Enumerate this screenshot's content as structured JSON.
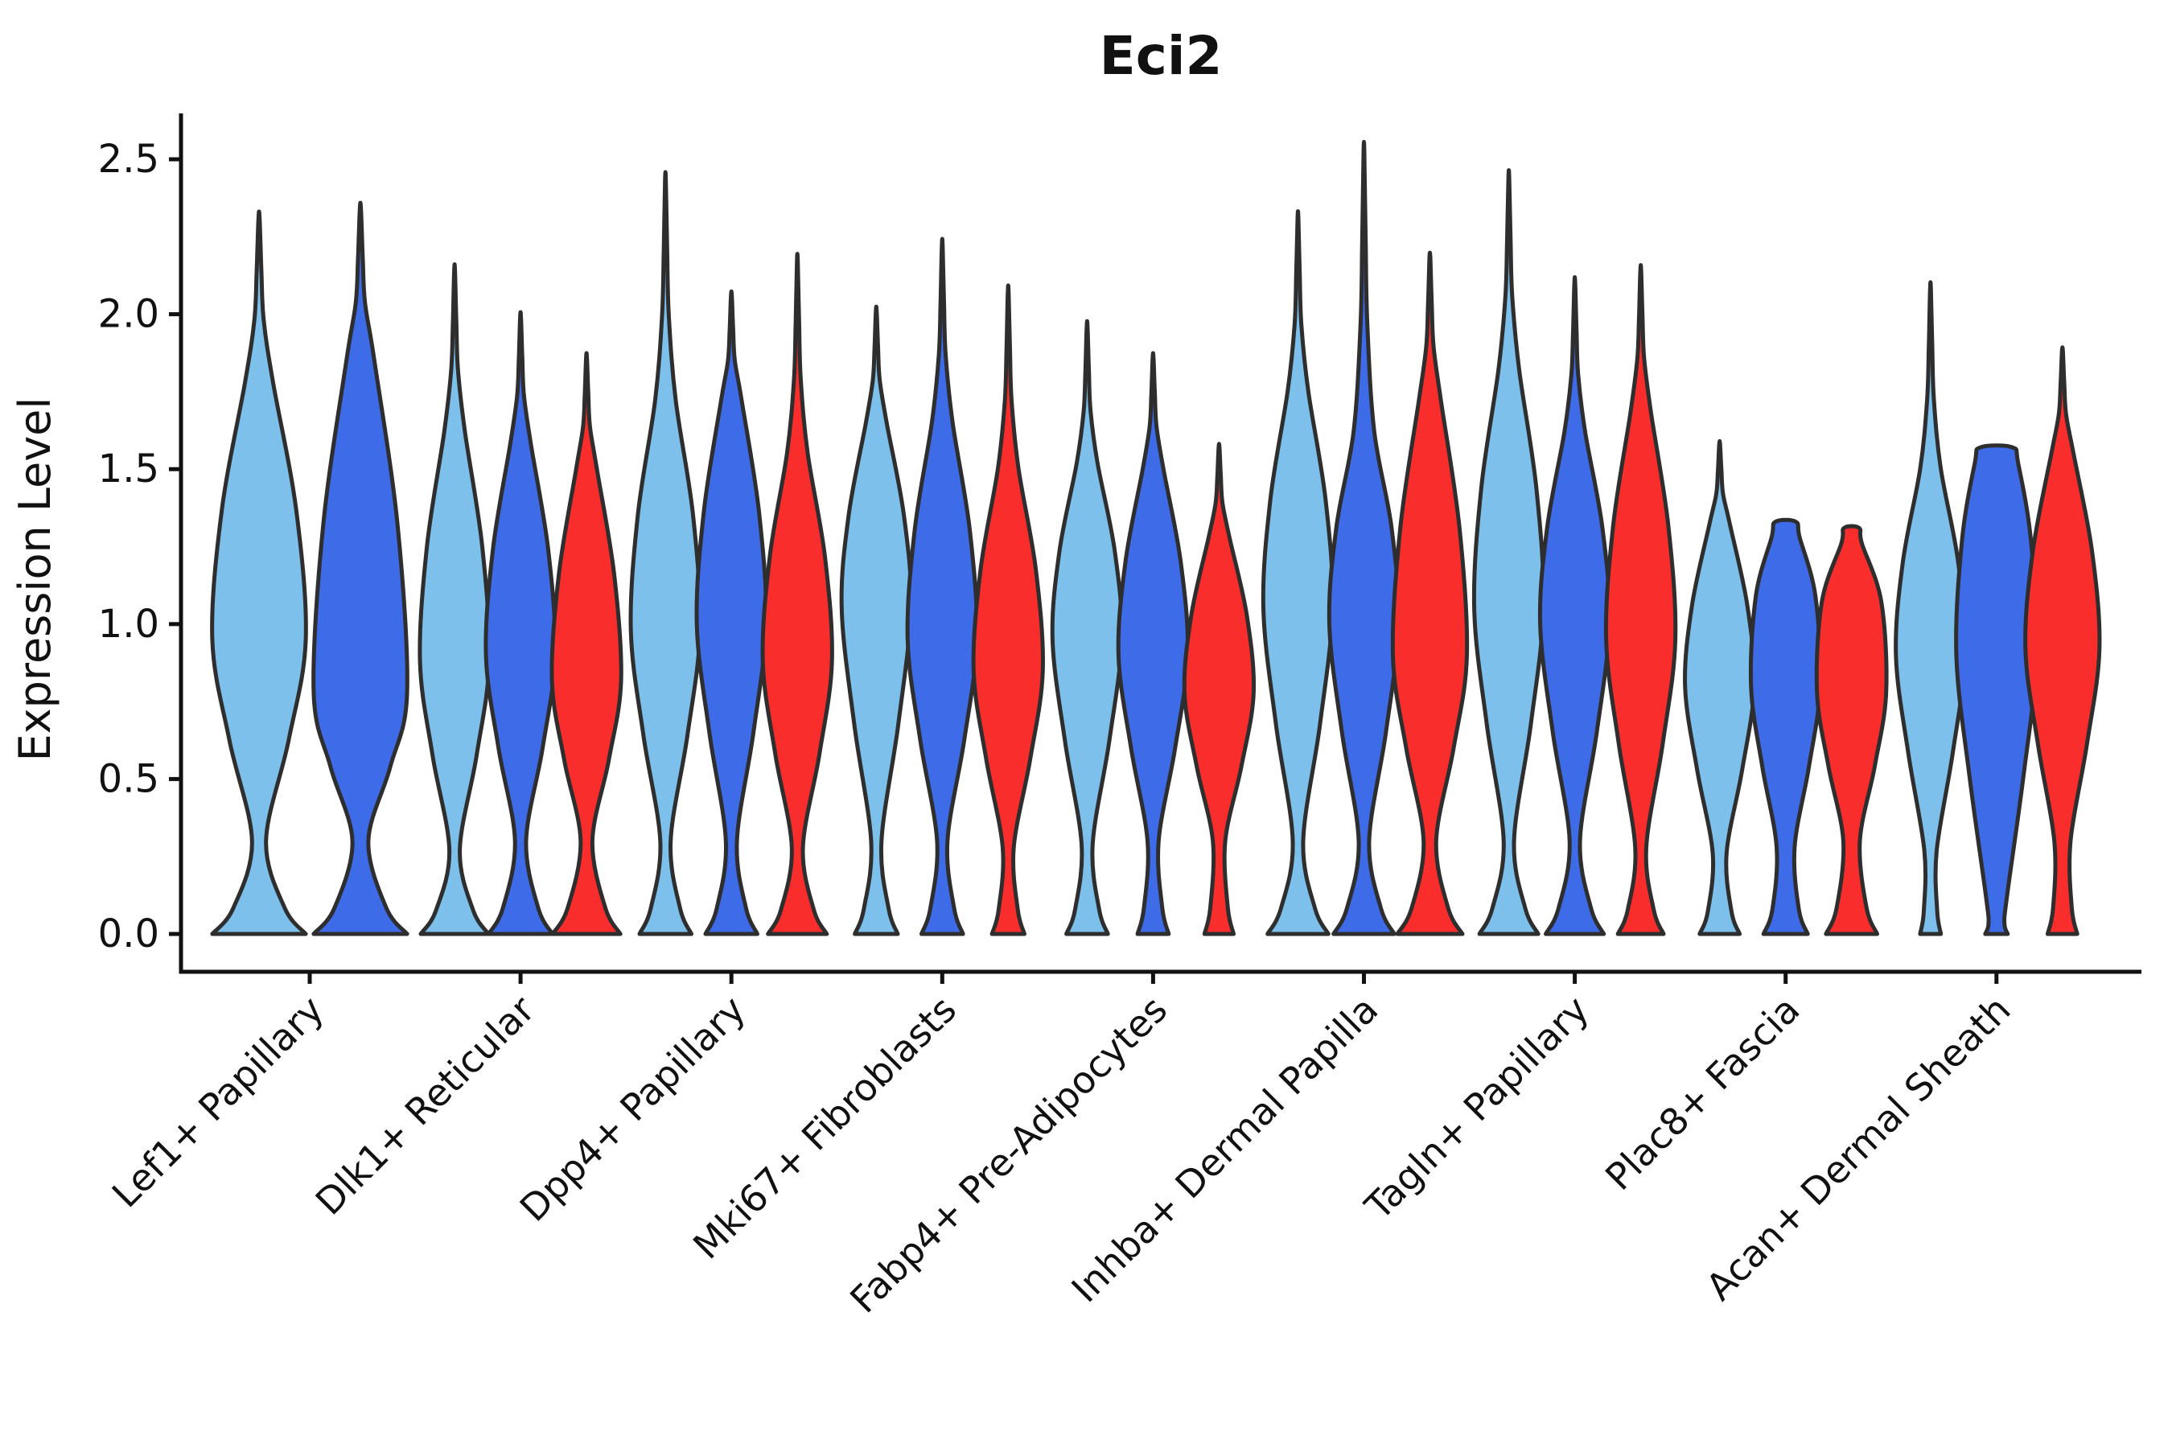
{
  "chart_data": {
    "type": "violin",
    "title": "Eci2",
    "xlabel": "",
    "ylabel": "Expression Level",
    "yticks": [
      0.0,
      0.5,
      1.0,
      1.5,
      2.0,
      2.5
    ],
    "ylim": [
      -0.12,
      2.65
    ],
    "grid": false,
    "legend_position": "none",
    "palette": {
      "skyblue": "#7CC0EB",
      "royalblue": "#3E6BE8",
      "red": "#FA2D2D",
      "outline": "#2E2E2E"
    },
    "categories": [
      "Lef1+ Papillary",
      "Dlk1+ Reticular",
      "Dpp4+ Papillary",
      "Mki67+ Fibroblasts",
      "Fabp4+ Pre-Adipocytes",
      "Inhba+ Dermal Papilla",
      "Tagln+ Papillary",
      "Plac8+ Fascia",
      "Acan+ Dermal Sheath"
    ],
    "groups": [
      {
        "label": "Lef1+ Papillary",
        "violins": [
          {
            "series": "skyblue",
            "max": 2.31,
            "peak": 0.95,
            "neck": 1.78,
            "pinch": 0.3,
            "pinch_w": 0.15,
            "base_w": 1.0,
            "rel_width": 1.35
          },
          {
            "series": "royalblue",
            "max": 2.34,
            "peak": 0.78,
            "neck": 1.85,
            "pinch": 0.3,
            "pinch_w": 0.17,
            "base_w": 1.0,
            "rel_width": 1.35
          }
        ]
      },
      {
        "label": "Dlk1+ Reticular",
        "violins": [
          {
            "series": "skyblue",
            "max": 2.14,
            "peak": 0.88,
            "neck": 1.62,
            "pinch": 0.27,
            "pinch_w": 0.15,
            "base_w": 0.98,
            "rel_width": 1.0
          },
          {
            "series": "royalblue",
            "max": 1.99,
            "peak": 0.9,
            "neck": 1.58,
            "pinch": 0.3,
            "pinch_w": 0.16,
            "base_w": 0.92,
            "rel_width": 1.0
          },
          {
            "series": "red",
            "max": 1.86,
            "peak": 0.82,
            "neck": 1.5,
            "pinch": 0.3,
            "pinch_w": 0.17,
            "base_w": 0.98,
            "rel_width": 1.0
          }
        ]
      },
      {
        "label": "Dpp4+ Papillary",
        "violins": [
          {
            "series": "skyblue",
            "max": 2.43,
            "peak": 0.98,
            "neck": 1.72,
            "pinch": 0.3,
            "pinch_w": 0.15,
            "base_w": 0.75,
            "rel_width": 1.0
          },
          {
            "series": "royalblue",
            "max": 2.06,
            "peak": 1.0,
            "neck": 1.72,
            "pinch": 0.3,
            "pinch_w": 0.16,
            "base_w": 0.75,
            "rel_width": 1.0
          },
          {
            "series": "red",
            "max": 2.17,
            "peak": 0.88,
            "neck": 1.55,
            "pinch": 0.28,
            "pinch_w": 0.16,
            "base_w": 0.85,
            "rel_width": 1.0
          }
        ]
      },
      {
        "label": "Mki67+ Fibroblasts",
        "violins": [
          {
            "series": "skyblue",
            "max": 2.01,
            "peak": 1.05,
            "neck": 1.65,
            "pinch": 0.3,
            "pinch_w": 0.15,
            "base_w": 0.62,
            "rel_width": 1.0
          },
          {
            "series": "royalblue",
            "max": 2.22,
            "peak": 0.95,
            "neck": 1.65,
            "pinch": 0.3,
            "pinch_w": 0.15,
            "base_w": 0.6,
            "rel_width": 1.0
          },
          {
            "series": "red",
            "max": 2.07,
            "peak": 0.85,
            "neck": 1.5,
            "pinch": 0.28,
            "pinch_w": 0.16,
            "base_w": 0.47,
            "rel_width": 1.0
          }
        ]
      },
      {
        "label": "Fabp4+ Pre-Adipocytes",
        "violins": [
          {
            "series": "skyblue",
            "max": 1.96,
            "peak": 0.95,
            "neck": 1.52,
            "pinch": 0.29,
            "pinch_w": 0.16,
            "base_w": 0.6,
            "rel_width": 1.0
          },
          {
            "series": "royalblue",
            "max": 1.86,
            "peak": 0.9,
            "neck": 1.5,
            "pinch": 0.3,
            "pinch_w": 0.16,
            "base_w": 0.45,
            "rel_width": 1.0
          },
          {
            "series": "red",
            "max": 1.57,
            "peak": 0.78,
            "neck": 1.28,
            "pinch": 0.3,
            "pinch_w": 0.18,
            "base_w": 0.42,
            "rel_width": 1.0
          }
        ]
      },
      {
        "label": "Inhba+ Dermal Papilla",
        "violins": [
          {
            "series": "skyblue",
            "max": 2.31,
            "peak": 1.05,
            "neck": 1.75,
            "pinch": 0.3,
            "pinch_w": 0.15,
            "base_w": 0.88,
            "rel_width": 1.0
          },
          {
            "series": "royalblue",
            "max": 2.52,
            "peak": 1.0,
            "neck": 1.62,
            "pinch": 0.3,
            "pinch_w": 0.15,
            "base_w": 0.88,
            "rel_width": 1.0
          },
          {
            "series": "red",
            "max": 2.18,
            "peak": 0.9,
            "neck": 1.72,
            "pinch": 0.3,
            "pinch_w": 0.17,
            "base_w": 0.88,
            "rel_width": 1.07
          }
        ]
      },
      {
        "label": "Tagln+ Papillary",
        "violins": [
          {
            "series": "skyblue",
            "max": 2.44,
            "peak": 1.05,
            "neck": 1.82,
            "pinch": 0.3,
            "pinch_w": 0.15,
            "base_w": 0.85,
            "rel_width": 1.0
          },
          {
            "series": "royalblue",
            "max": 2.1,
            "peak": 1.0,
            "neck": 1.62,
            "pinch": 0.3,
            "pinch_w": 0.15,
            "base_w": 0.84,
            "rel_width": 1.0
          },
          {
            "series": "red",
            "max": 2.14,
            "peak": 0.95,
            "neck": 1.68,
            "pinch": 0.28,
            "pinch_w": 0.16,
            "base_w": 0.66,
            "rel_width": 1.0
          }
        ]
      },
      {
        "label": "Plac8+ Fascia",
        "violins": [
          {
            "series": "skyblue",
            "max": 1.58,
            "peak": 0.8,
            "neck": 1.32,
            "pinch": 0.26,
            "pinch_w": 0.2,
            "base_w": 0.58,
            "rel_width": 1.0
          },
          {
            "series": "royalblue",
            "max": 1.33,
            "peak": 0.8,
            "blunt": true,
            "cap_w": 0.3,
            "pinch": 0.28,
            "pinch_w": 0.26,
            "base_w": 0.64,
            "rel_width": 1.0
          },
          {
            "series": "red",
            "max": 1.31,
            "peak": 0.78,
            "blunt": true,
            "cap_w": 0.22,
            "pinch": 0.3,
            "pinch_w": 0.24,
            "base_w": 0.74,
            "rel_width": 1.0
          }
        ]
      },
      {
        "label": "Acan+ Dermal Sheath",
        "violins": [
          {
            "series": "skyblue",
            "max": 2.08,
            "peak": 0.9,
            "neck": 1.5,
            "pinch": 0.27,
            "pinch_w": 0.18,
            "base_w": 0.3,
            "rel_width": 1.0
          },
          {
            "series": "royalblue",
            "max": 1.57,
            "peak": 0.9,
            "blunt": true,
            "cap_w": 0.4,
            "pinch": 0.12,
            "pinch_w": 0.26,
            "base_w": 0.28,
            "rel_width": 1.16
          },
          {
            "series": "red",
            "max": 1.88,
            "peak": 0.92,
            "neck": 1.55,
            "pinch": 0.3,
            "pinch_w": 0.22,
            "base_w": 0.4,
            "rel_width": 1.07
          }
        ]
      }
    ]
  }
}
